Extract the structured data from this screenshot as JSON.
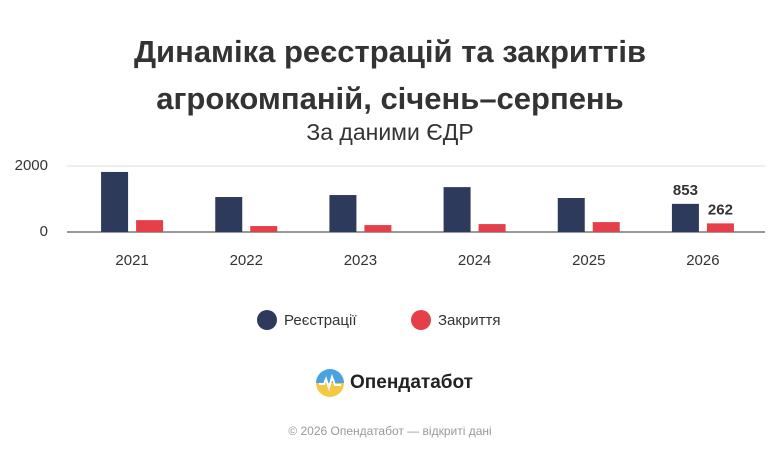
{
  "chart_data": {
    "type": "bar",
    "title": "Динаміка реєстрацій та закриттів агрокомпаній, січень–серпень",
    "subtitle": "За даними ЄДР",
    "categories": [
      "2021",
      "2022",
      "2023",
      "2024",
      "2025",
      "2026"
    ],
    "series": [
      {
        "name": "Реєстрації",
        "color": "#2d3a5c",
        "values": [
          1820,
          1060,
          1120,
          1360,
          1030,
          853
        ]
      },
      {
        "name": "Закриття",
        "color": "#e5404a",
        "values": [
          360,
          180,
          210,
          240,
          300,
          262
        ]
      }
    ],
    "ylim": [
      0,
      2000
    ],
    "yticks": [
      0,
      2000
    ],
    "grid": true,
    "data_labels": "last",
    "legend": "bottom"
  },
  "brand": "Опендатабот",
  "footer": "© 2026 Опендатабот — відкриті дані"
}
